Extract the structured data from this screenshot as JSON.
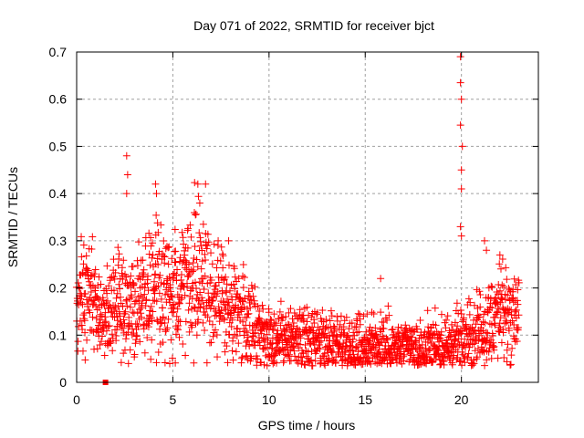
{
  "chart_data": {
    "type": "scatter",
    "title": "Day 071 of 2022, SRMTID for receiver bjct",
    "xlabel": "GPS time / hours",
    "ylabel": "SRMTID / TECUs",
    "xlim": [
      0,
      24
    ],
    "ylim": [
      0,
      0.7
    ],
    "xticks": [
      "0",
      "5",
      "10",
      "15",
      "20"
    ],
    "yticks": [
      "0",
      "0.1",
      "0.2",
      "0.3",
      "0.4",
      "0.5",
      "0.6",
      "0.7"
    ],
    "grid": true,
    "marker": "plus",
    "color": "#ff0000",
    "series": [
      {
        "name": "SRMTID",
        "trend": [
          [
            0.0,
            0.17
          ],
          [
            0.5,
            0.18
          ],
          [
            1.0,
            0.15
          ],
          [
            1.5,
            0.13
          ],
          [
            2.0,
            0.17
          ],
          [
            2.5,
            0.17
          ],
          [
            3.0,
            0.16
          ],
          [
            3.5,
            0.19
          ],
          [
            4.0,
            0.22
          ],
          [
            4.5,
            0.19
          ],
          [
            5.0,
            0.18
          ],
          [
            5.5,
            0.23
          ],
          [
            6.0,
            0.25
          ],
          [
            6.5,
            0.22
          ],
          [
            7.0,
            0.19
          ],
          [
            7.5,
            0.17
          ],
          [
            8.0,
            0.15
          ],
          [
            8.5,
            0.14
          ],
          [
            9.0,
            0.12
          ],
          [
            9.5,
            0.11
          ],
          [
            10.0,
            0.1
          ],
          [
            10.5,
            0.1
          ],
          [
            11.0,
            0.09
          ],
          [
            11.5,
            0.09
          ],
          [
            12.0,
            0.09
          ],
          [
            12.5,
            0.08
          ],
          [
            13.0,
            0.08
          ],
          [
            13.5,
            0.08
          ],
          [
            14.0,
            0.08
          ],
          [
            14.5,
            0.08
          ],
          [
            15.0,
            0.08
          ],
          [
            15.5,
            0.08
          ],
          [
            16.0,
            0.09
          ],
          [
            16.5,
            0.07
          ],
          [
            17.0,
            0.07
          ],
          [
            17.5,
            0.07
          ],
          [
            18.0,
            0.07
          ],
          [
            18.5,
            0.08
          ],
          [
            19.0,
            0.07
          ],
          [
            19.5,
            0.08
          ],
          [
            20.0,
            0.1
          ],
          [
            20.5,
            0.09
          ],
          [
            21.0,
            0.12
          ],
          [
            21.5,
            0.13
          ],
          [
            22.0,
            0.14
          ],
          [
            22.5,
            0.15
          ],
          [
            23.0,
            0.16
          ]
        ],
        "peaks": [
          {
            "x": 2.6,
            "y": 0.48
          },
          {
            "x": 2.65,
            "y": 0.44
          },
          {
            "x": 2.6,
            "y": 0.4
          },
          {
            "x": 4.1,
            "y": 0.42
          },
          {
            "x": 4.15,
            "y": 0.4
          },
          {
            "x": 6.3,
            "y": 0.42
          },
          {
            "x": 6.7,
            "y": 0.42
          },
          {
            "x": 6.4,
            "y": 0.38
          },
          {
            "x": 7.9,
            "y": 0.3
          },
          {
            "x": 15.8,
            "y": 0.22
          },
          {
            "x": 19.95,
            "y": 0.69
          },
          {
            "x": 19.95,
            "y": 0.635
          },
          {
            "x": 20.0,
            "y": 0.6
          },
          {
            "x": 19.95,
            "y": 0.545
          },
          {
            "x": 20.05,
            "y": 0.5
          },
          {
            "x": 20.0,
            "y": 0.45
          },
          {
            "x": 20.0,
            "y": 0.41
          },
          {
            "x": 19.95,
            "y": 0.33
          },
          {
            "x": 20.0,
            "y": 0.31
          },
          {
            "x": 21.2,
            "y": 0.3
          },
          {
            "x": 21.3,
            "y": 0.28
          },
          {
            "x": 22.0,
            "y": 0.27
          }
        ],
        "outliers": [
          {
            "x": 1.5,
            "y": 0.0,
            "marker": "square"
          }
        ]
      }
    ]
  }
}
